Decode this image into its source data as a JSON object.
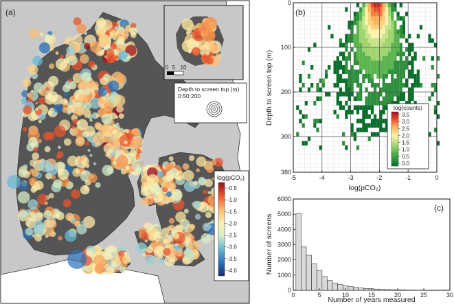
{
  "panel_a": {
    "label": "(a)",
    "inset_scale_ticks": [
      "0",
      "5",
      "10"
    ],
    "depth_legend_title": "Depth to screen top (m)",
    "depth_legend_values": "0:50:200",
    "colorbar_title": "log(pCO₂)",
    "colorbar_ticks": [
      "-0.5",
      "-1.0",
      "-1.5",
      "-2.0",
      "-2.5",
      "-3.0",
      "-3.5",
      "-4.0"
    ],
    "colors": {
      "sea": "#c8c8c8",
      "land": "#555555",
      "foreign_land": "#ffffff"
    }
  },
  "chart_data": [
    {
      "panel": "(b)",
      "type": "heatmap",
      "xlabel": "log(pCO₂)",
      "ylabel": "Depth to screen top (m)",
      "xlim": [
        -5,
        0
      ],
      "ylim": [
        380,
        0
      ],
      "xticks": [
        "-5",
        "-4",
        "-3",
        "-2",
        "-1",
        "0"
      ],
      "yticks": [
        "0",
        "100",
        "200",
        "300",
        "380"
      ],
      "bin_width_x": 0.1,
      "bin_height_y": 10,
      "colorbar_title": "log(counts)",
      "colorbar_ticks": [
        "3.5",
        "3.0",
        "2.5",
        "2.0",
        "1.5",
        "1.0",
        "0.5",
        "0.0"
      ],
      "peak": {
        "x": -2.1,
        "y": 15,
        "value": 3.4
      }
    },
    {
      "panel": "(c)",
      "type": "bar",
      "xlabel": "Number of years measured",
      "ylabel": "Number of screens",
      "xlim": [
        0,
        30
      ],
      "ylim": [
        0,
        6000
      ],
      "xticks": [
        "0",
        "5",
        "10",
        "15",
        "20",
        "25",
        "30"
      ],
      "yticks": [
        "0",
        "1000",
        "2000",
        "3000",
        "4000",
        "5000",
        "6000"
      ],
      "bin_width": 1,
      "x": [
        1,
        2,
        3,
        4,
        5,
        6,
        7,
        8,
        9,
        10,
        11,
        12,
        13,
        14,
        15,
        16,
        17,
        18,
        19,
        20,
        21,
        22,
        23,
        24
      ],
      "values": [
        5050,
        2850,
        2300,
        1750,
        1300,
        900,
        650,
        480,
        380,
        300,
        240,
        190,
        150,
        120,
        100,
        80,
        60,
        50,
        40,
        30,
        25,
        20,
        15,
        10
      ]
    }
  ]
}
